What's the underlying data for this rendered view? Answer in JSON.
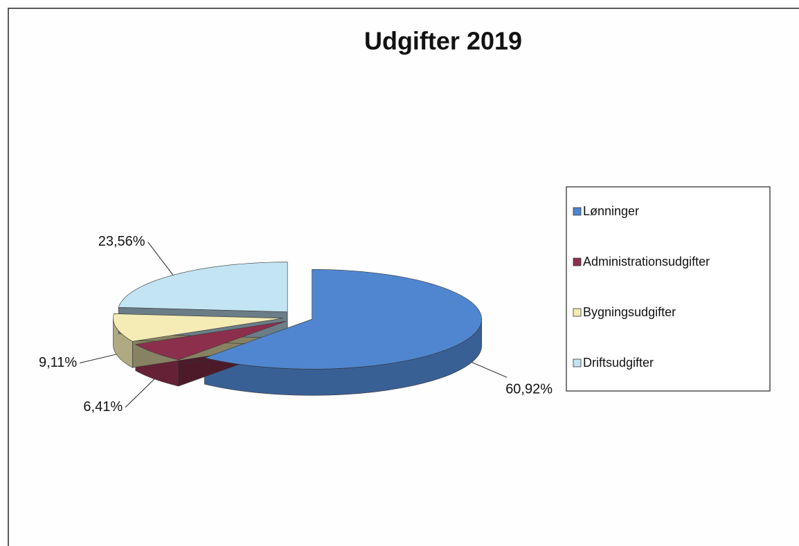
{
  "chart_data": {
    "type": "pie",
    "title": "Udgifter 2019",
    "categories": [
      "Lønninger",
      "Administrationsudgifter",
      "Bygningsudgifter",
      "Driftsudgifter"
    ],
    "values": [
      60.92,
      6.41,
      9.11,
      23.56
    ],
    "value_labels": [
      "60,92%",
      "6,41%",
      "9,11%",
      "23,56%"
    ],
    "colors": [
      "#4f86cf",
      "#8c2f4c",
      "#f4ecb4",
      "#c2e4f3"
    ],
    "legend": "right"
  }
}
